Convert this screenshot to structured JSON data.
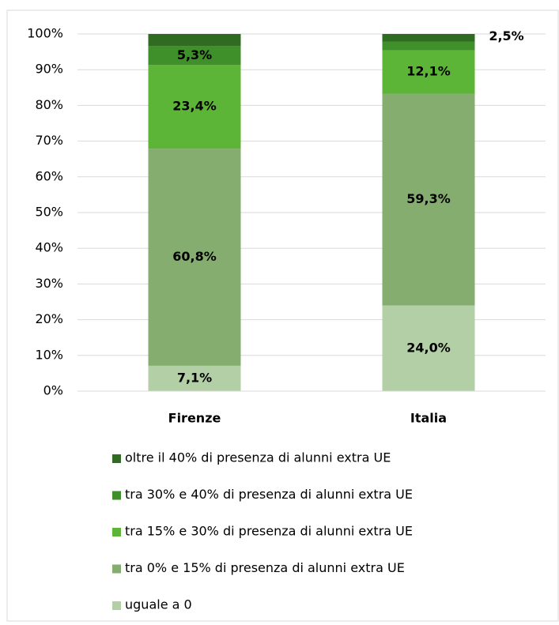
{
  "chart_data": {
    "type": "stacked_bar",
    "categories": [
      "Firenze",
      "Italia"
    ],
    "series": [
      {
        "name": "uguale a 0",
        "color": "#b3cfa5",
        "values": [
          7.1,
          24.0
        ],
        "value_labels": [
          "7,1%",
          "24,0%"
        ]
      },
      {
        "name": "tra 0%  e 15% di presenza di alunni extra UE",
        "color": "#86ad70",
        "values": [
          60.8,
          59.3
        ],
        "value_labels": [
          "60,8%",
          "59,3%"
        ]
      },
      {
        "name": "tra 15% e  30% di presenza di alunni extra UE",
        "color": "#5cb536",
        "values": [
          23.4,
          12.1
        ],
        "value_labels": [
          "23,4%",
          "12,1%"
        ]
      },
      {
        "name": "tra 30% e  40% di presenza di alunni extra UE",
        "color": "#3f8f2b",
        "values": [
          5.3,
          2.5
        ],
        "value_labels": [
          "5,3%",
          "2,5%"
        ]
      },
      {
        "name": "oltre il 40% di presenza di alunni extra UE",
        "color": "#2f6c22",
        "values": [
          3.4,
          2.1
        ]
      }
    ],
    "ylim": [
      0,
      100
    ],
    "yticks": [
      {
        "value": 0,
        "label": "0%"
      },
      {
        "value": 10,
        "label": "10%"
      },
      {
        "value": 20,
        "label": "20%"
      },
      {
        "value": 30,
        "label": "30%"
      },
      {
        "value": 40,
        "label": "40%"
      },
      {
        "value": 50,
        "label": "50%"
      },
      {
        "value": 60,
        "label": "60%"
      },
      {
        "value": 70,
        "label": "70%"
      },
      {
        "value": 80,
        "label": "80%"
      },
      {
        "value": 90,
        "label": "90%"
      },
      {
        "value": 100,
        "label": "100%"
      }
    ],
    "grid": true
  }
}
